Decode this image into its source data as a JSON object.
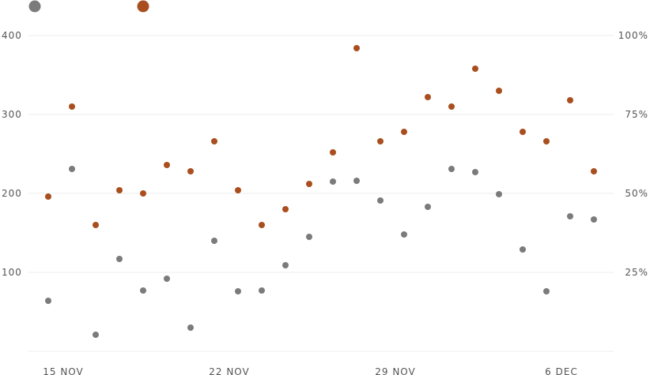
{
  "chart_data": {
    "type": "scatter",
    "legend": {
      "placement": "top-left"
    },
    "grid": true,
    "x_dates": [
      "15 Nov",
      "16 Nov",
      "17 Nov",
      "18 Nov",
      "19 Nov",
      "20 Nov",
      "21 Nov",
      "22 Nov",
      "23 Nov",
      "24 Nov",
      "25 Nov",
      "26 Nov",
      "27 Nov",
      "28 Nov",
      "29 Nov",
      "30 Nov",
      "1 Dec",
      "2 Dec",
      "3 Dec",
      "4 Dec",
      "5 Dec",
      "6 Dec",
      "7 Dec",
      "8 Dec"
    ],
    "x_tick_labels": [
      "15 NOV",
      "22 NOV",
      "29 NOV",
      "6 DEC"
    ],
    "x_tick_dates": [
      "15 Nov",
      "22 Nov",
      "29 Nov",
      "6 Dec"
    ],
    "y_left": {
      "range": [
        0,
        400
      ],
      "ticks": [
        100,
        200,
        300,
        400
      ],
      "tick_labels": [
        "100",
        "200",
        "300",
        "400"
      ]
    },
    "y_right": {
      "range": [
        0,
        1
      ],
      "ticks": [
        0.25,
        0.5,
        0.75,
        1.0
      ],
      "tick_labels": [
        "25%",
        "50%",
        "75%",
        "100%"
      ]
    },
    "series": [
      {
        "axis": "left",
        "color": "#7b7b7b",
        "values": [
          64,
          231,
          21,
          117,
          77,
          92,
          30,
          140,
          76,
          77,
          109,
          145,
          215,
          216,
          191,
          148,
          183,
          231,
          227,
          199,
          129,
          76,
          171,
          167
        ]
      },
      {
        "axis": "right",
        "color": "#a94e1e",
        "values": [
          0.49,
          0.775,
          0.4,
          0.51,
          0.5,
          0.59,
          0.57,
          0.665,
          0.51,
          0.4,
          0.45,
          0.53,
          0.63,
          0.96,
          0.665,
          0.695,
          0.805,
          0.775,
          0.895,
          0.825,
          0.695,
          0.665,
          0.795,
          0.57
        ]
      }
    ]
  }
}
